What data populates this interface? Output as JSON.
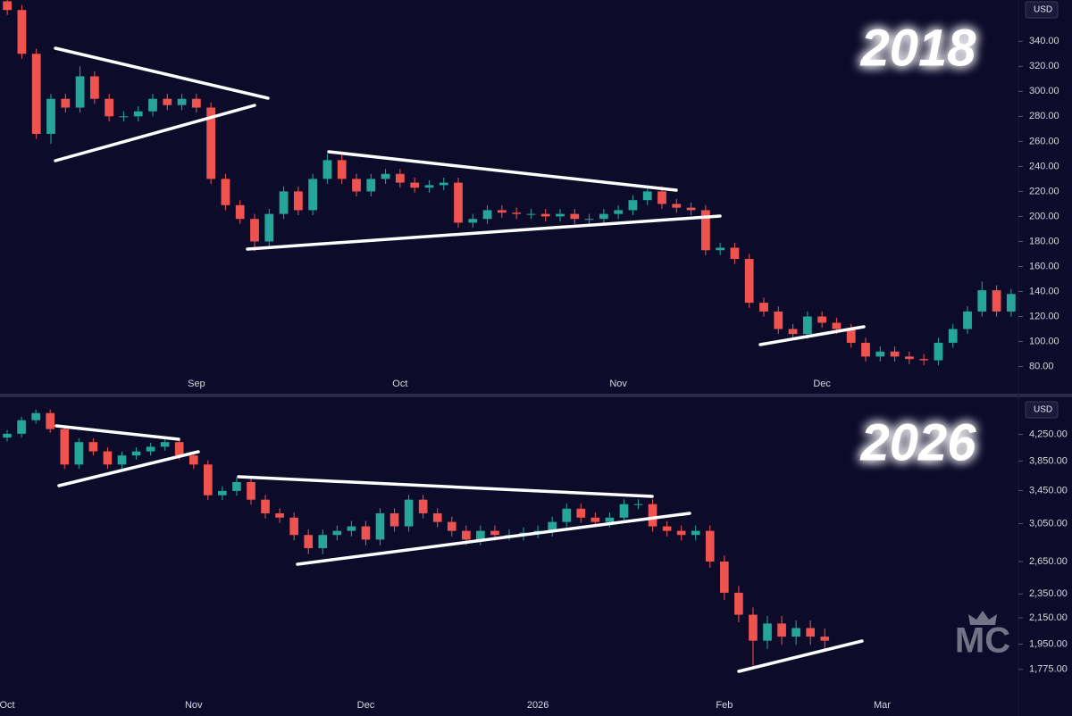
{
  "chart_data": [
    {
      "type": "candlestick",
      "title": "2018",
      "y_axis_label": "USD",
      "categories": [
        null,
        null,
        null,
        null,
        null,
        null,
        null,
        null,
        null,
        null,
        null,
        null,
        null,
        "Sep",
        null,
        null,
        null,
        null,
        null,
        null,
        null,
        null,
        null,
        null,
        null,
        null,
        null,
        "Oct",
        null,
        null,
        null,
        null,
        null,
        null,
        null,
        null,
        null,
        null,
        null,
        null,
        null,
        null,
        "Nov",
        null,
        null,
        null,
        null,
        null,
        null,
        null,
        null,
        null,
        null,
        null,
        null,
        null,
        "Dec",
        null,
        null,
        null,
        null,
        null,
        null,
        null,
        null,
        null,
        null,
        null,
        null,
        null
      ],
      "open": [
        372,
        365,
        330,
        266,
        294,
        287,
        312,
        294,
        280,
        280,
        284,
        294,
        289,
        294,
        287,
        230,
        209,
        198,
        180,
        202,
        220,
        205,
        230,
        245,
        230,
        220,
        230,
        234,
        227,
        223,
        225,
        227,
        195,
        198,
        205,
        203,
        202,
        202,
        200,
        202,
        198,
        198,
        202,
        205,
        213,
        220,
        210,
        207,
        205,
        173,
        175,
        166,
        131,
        124,
        110,
        106,
        120,
        115,
        110,
        99,
        88,
        92,
        88,
        86,
        85,
        99,
        110,
        124,
        141,
        124
      ],
      "high": [
        376,
        369,
        334,
        298,
        298,
        320,
        316,
        298,
        284,
        288,
        298,
        298,
        298,
        298,
        291,
        234,
        213,
        202,
        206,
        224,
        224,
        234,
        250,
        249,
        234,
        234,
        238,
        238,
        231,
        229,
        231,
        231,
        202,
        209,
        209,
        207,
        206,
        206,
        206,
        206,
        202,
        206,
        209,
        217,
        224,
        224,
        214,
        211,
        209,
        179,
        179,
        170,
        135,
        128,
        114,
        124,
        124,
        119,
        114,
        103,
        96,
        96,
        92,
        90,
        103,
        114,
        128,
        148,
        145,
        142
      ],
      "low": [
        361,
        326,
        262,
        258,
        283,
        283,
        290,
        276,
        276,
        276,
        280,
        285,
        285,
        283,
        226,
        205,
        194,
        172,
        176,
        198,
        201,
        201,
        226,
        226,
        216,
        216,
        226,
        223,
        219,
        219,
        221,
        191,
        191,
        194,
        199,
        198,
        198,
        196,
        196,
        194,
        194,
        194,
        198,
        201,
        209,
        206,
        203,
        201,
        169,
        169,
        162,
        127,
        120,
        106,
        102,
        102,
        111,
        106,
        95,
        84,
        84,
        84,
        82,
        81,
        81,
        95,
        106,
        120,
        120,
        120
      ],
      "close": [
        365,
        330,
        266,
        294,
        287,
        312,
        294,
        280,
        280,
        284,
        294,
        289,
        294,
        287,
        230,
        209,
        198,
        180,
        202,
        220,
        205,
        230,
        245,
        230,
        220,
        230,
        234,
        227,
        223,
        225,
        227,
        195,
        198,
        205,
        203,
        202,
        202,
        200,
        202,
        198,
        198,
        202,
        205,
        213,
        220,
        210,
        207,
        205,
        173,
        175,
        166,
        131,
        124,
        110,
        106,
        120,
        115,
        110,
        99,
        88,
        92,
        88,
        86,
        85,
        99,
        110,
        124,
        141,
        124,
        138
      ],
      "up_color": "#26a69a",
      "down_color": "#ef5350",
      "log_scale": false,
      "ylim": [
        59,
        373
      ],
      "yticks": [
        {
          "value": 80,
          "label": "80.00"
        },
        {
          "value": 100,
          "label": "100.00"
        },
        {
          "value": 120,
          "label": "120.00"
        },
        {
          "value": 140,
          "label": "140.00"
        },
        {
          "value": 160,
          "label": "160.00"
        },
        {
          "value": 180,
          "label": "180.00"
        },
        {
          "value": 200,
          "label": "200.00"
        },
        {
          "value": 220,
          "label": "220.00"
        },
        {
          "value": 240,
          "label": "240.00"
        },
        {
          "value": 260,
          "label": "260.00"
        },
        {
          "value": 280,
          "label": "280.00"
        },
        {
          "value": 300,
          "label": "300.00"
        },
        {
          "value": 320,
          "label": "320.00"
        },
        {
          "value": 340,
          "label": "340.00"
        }
      ]
    },
    {
      "type": "candlestick",
      "title": "2026",
      "y_axis_label": "USD",
      "categories": [
        "Oct",
        null,
        null,
        null,
        null,
        null,
        null,
        null,
        null,
        null,
        null,
        null,
        null,
        "Nov",
        null,
        null,
        null,
        null,
        null,
        null,
        null,
        null,
        null,
        null,
        null,
        "Dec",
        null,
        null,
        null,
        null,
        null,
        null,
        null,
        null,
        null,
        null,
        null,
        "2026",
        null,
        null,
        null,
        null,
        null,
        null,
        null,
        null,
        null,
        null,
        null,
        null,
        "Feb",
        null,
        null,
        null,
        null,
        null,
        null,
        null,
        null,
        null,
        null,
        "Mar",
        null,
        null,
        null,
        null,
        null,
        null,
        null,
        null,
        null
      ],
      "open": [
        4200,
        4260,
        4480,
        4600,
        4335,
        3800,
        4130,
        3990,
        3800,
        3930,
        3990,
        4060,
        4130,
        3930,
        3800,
        3390,
        3445,
        3560,
        3335,
        3170,
        3120,
        2925,
        2785,
        2925,
        2970,
        3020,
        2875,
        3170,
        3020,
        3335,
        3170,
        3070,
        2970,
        2875,
        2970,
        2925,
        2925,
        2950,
        2970,
        3070,
        3225,
        3120,
        3070,
        3120,
        3280,
        3280,
        3020,
        2970,
        2925,
        2970,
        2650,
        2360,
        2175,
        1975,
        2105,
        2005,
        2070,
        2005,
        null,
        null,
        null,
        null,
        null,
        null,
        null,
        null,
        null,
        null,
        null,
        null,
        null
      ],
      "high": [
        4320,
        4540,
        4660,
        4660,
        4395,
        4190,
        4190,
        4050,
        3990,
        4050,
        4120,
        4190,
        4190,
        3990,
        3860,
        3505,
        3620,
        3620,
        3395,
        3230,
        3180,
        2985,
        2985,
        3030,
        3080,
        3080,
        3230,
        3230,
        3395,
        3395,
        3230,
        3130,
        3030,
        3030,
        3030,
        2985,
        3010,
        3030,
        3130,
        3285,
        3285,
        3180,
        3180,
        3340,
        3340,
        3340,
        3080,
        3030,
        3030,
        3030,
        2710,
        2420,
        2235,
        2165,
        2165,
        2130,
        2130,
        2065,
        null,
        null,
        null,
        null,
        null,
        null,
        null,
        null,
        null,
        null,
        null,
        null,
        null
      ],
      "low": [
        4140,
        4200,
        4420,
        4275,
        3740,
        3740,
        3930,
        3740,
        3740,
        3870,
        3930,
        4000,
        3870,
        3740,
        3330,
        3330,
        3385,
        3275,
        3110,
        3060,
        2865,
        2725,
        2725,
        2865,
        2910,
        2815,
        2815,
        2960,
        2960,
        3110,
        3010,
        2910,
        2815,
        2815,
        2865,
        2865,
        2865,
        2890,
        2910,
        3010,
        3060,
        3010,
        3010,
        3060,
        3220,
        2960,
        2910,
        2865,
        2865,
        2590,
        2300,
        2115,
        1800,
        1915,
        1945,
        1945,
        1945,
        1915,
        null,
        null,
        null,
        null,
        null,
        null,
        null,
        null,
        null,
        null,
        null,
        null,
        null
      ],
      "close": [
        4260,
        4480,
        4600,
        4335,
        3800,
        4130,
        3990,
        3800,
        3930,
        3990,
        4060,
        4130,
        3930,
        3800,
        3390,
        3445,
        3560,
        3335,
        3170,
        3120,
        2925,
        2785,
        2925,
        2970,
        3020,
        2875,
        3170,
        3020,
        3335,
        3170,
        3070,
        2970,
        2875,
        2970,
        2925,
        2925,
        2950,
        2970,
        3070,
        3225,
        3120,
        3070,
        3120,
        3280,
        3280,
        3020,
        2970,
        2925,
        2970,
        2650,
        2360,
        2175,
        1975,
        2105,
        2005,
        2070,
        2005,
        1975,
        null,
        null,
        null,
        null,
        null,
        null,
        null,
        null,
        null,
        null,
        null,
        null,
        null
      ],
      "up_color": "#26a69a",
      "down_color": "#ef5350",
      "log_scale": true,
      "ylim": [
        1606,
        4830
      ],
      "yticks": [
        {
          "value": 1775,
          "label": "1,775.00"
        },
        {
          "value": 1950,
          "label": "1,950.00"
        },
        {
          "value": 2150,
          "label": "2,150.00"
        },
        {
          "value": 2350,
          "label": "2,350.00"
        },
        {
          "value": 2650,
          "label": "2,650.00"
        },
        {
          "value": 3050,
          "label": "3,050.00"
        },
        {
          "value": 3450,
          "label": "3,450.00"
        },
        {
          "value": 3850,
          "label": "3,850.00"
        },
        {
          "value": 4250,
          "label": "4,250.00"
        }
      ]
    }
  ],
  "watermark": "MC"
}
